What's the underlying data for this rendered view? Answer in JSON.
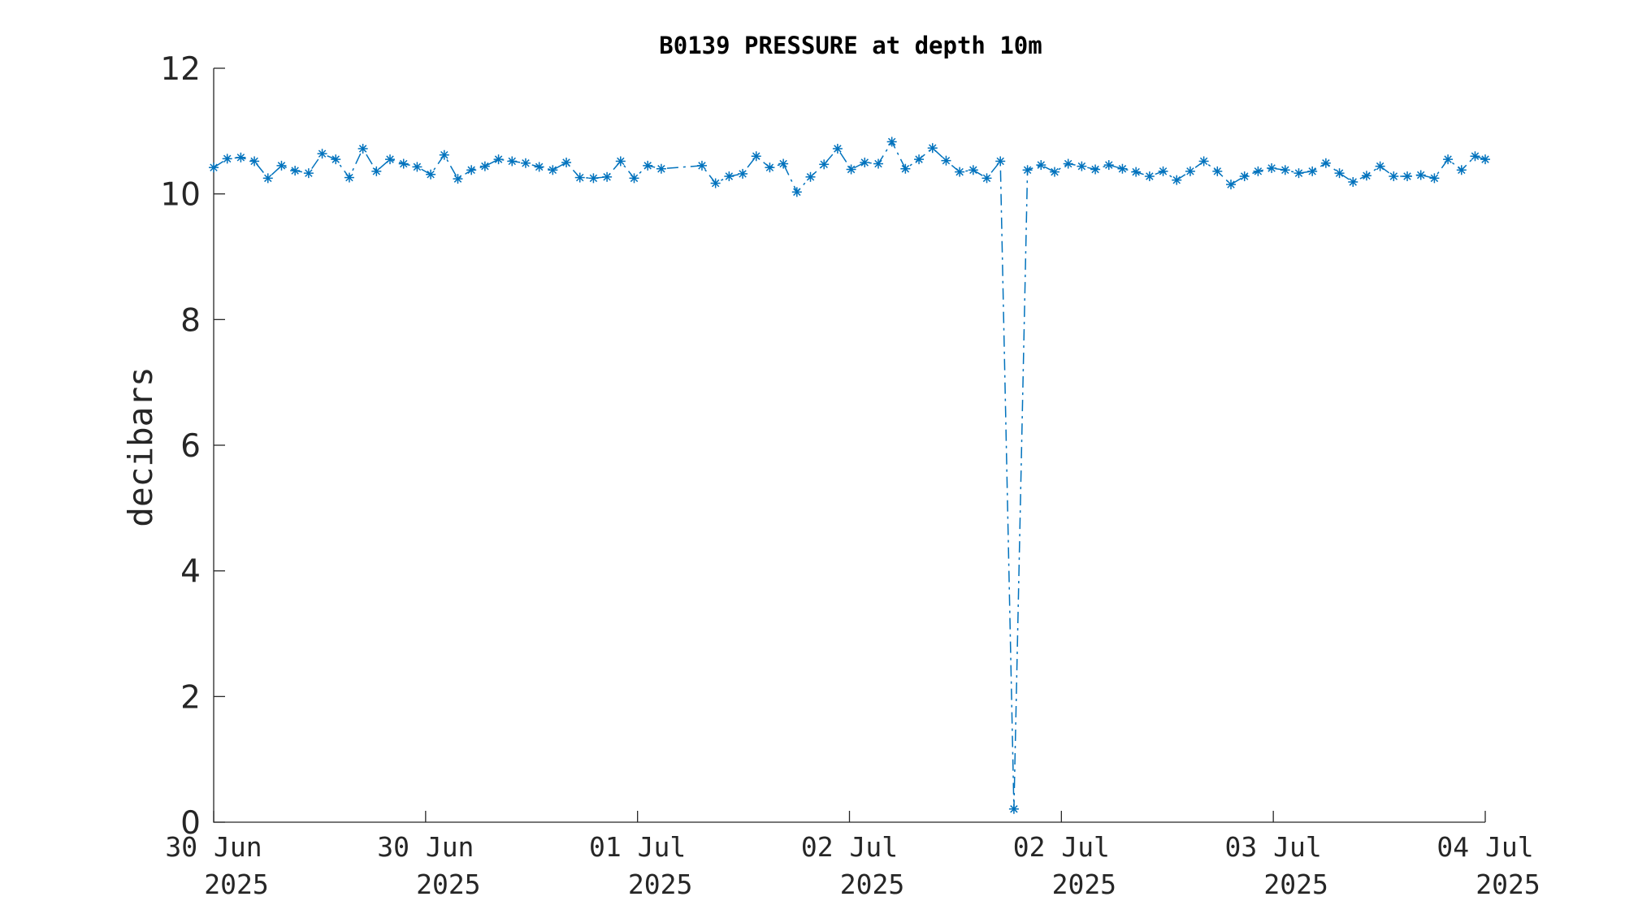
{
  "chart_data": {
    "type": "line",
    "title": "B0139 PRESSURE at depth 10m",
    "ylabel": "decibars",
    "xlabel": "",
    "ylim": [
      0,
      12
    ],
    "yticks": [
      0,
      2,
      4,
      6,
      8,
      10,
      12
    ],
    "xlim": [
      0,
      90
    ],
    "xticks": [
      {
        "value": 0,
        "line1": "30 Jun",
        "line2": "2025"
      },
      {
        "value": 15,
        "line1": "30 Jun",
        "line2": "2025"
      },
      {
        "value": 30,
        "line1": "01 Jul",
        "line2": "2025"
      },
      {
        "value": 45,
        "line1": "02 Jul",
        "line2": "2025"
      },
      {
        "value": 60,
        "line1": "02 Jul",
        "line2": "2025"
      },
      {
        "value": 75,
        "line1": "03 Jul",
        "line2": "2025"
      },
      {
        "value": 90,
        "line1": "04 Jul",
        "line2": "2025"
      }
    ],
    "grid": false,
    "marker": "asterisk",
    "line_style": "dash-dot",
    "color": "#0072BD",
    "series": [
      {
        "x": [
          0.0,
          0.96,
          1.92,
          2.88,
          3.84,
          4.8,
          5.76,
          6.72,
          7.68,
          8.64,
          9.6,
          10.56,
          11.52,
          12.48,
          13.44,
          14.4,
          15.36,
          16.32,
          17.28,
          18.24,
          19.2,
          20.16,
          21.12,
          22.08,
          23.04,
          24.0,
          24.96,
          25.92,
          26.88,
          27.84,
          28.8,
          29.76,
          30.72,
          31.68,
          34.56,
          35.52,
          36.48,
          37.44,
          38.4,
          39.36,
          40.32,
          41.28,
          42.24,
          43.2,
          44.16,
          45.12,
          46.08,
          47.04,
          48.0,
          48.96,
          49.92,
          50.88,
          51.84,
          52.8,
          53.76,
          54.72,
          55.68,
          56.64,
          57.6,
          58.56,
          59.52,
          60.48,
          61.44,
          62.4,
          63.36,
          64.32,
          65.28,
          66.24,
          67.2,
          68.16,
          69.12,
          70.08,
          71.04,
          72.0,
          72.96,
          73.92,
          74.88,
          75.84,
          76.8,
          77.76,
          78.72,
          79.68,
          80.64,
          81.6,
          82.56,
          83.52,
          84.48,
          85.44,
          86.4,
          87.36,
          88.32,
          89.28,
          90.0
        ],
        "y": [
          10.42,
          10.56,
          10.58,
          10.52,
          10.25,
          10.45,
          10.37,
          10.33,
          10.64,
          10.55,
          10.26,
          10.72,
          10.36,
          10.55,
          10.48,
          10.43,
          10.31,
          10.62,
          10.24,
          10.38,
          10.44,
          10.55,
          10.52,
          10.49,
          10.43,
          10.38,
          10.5,
          10.26,
          10.25,
          10.27,
          10.52,
          10.25,
          10.45,
          10.4,
          10.45,
          10.17,
          10.28,
          10.32,
          10.6,
          10.42,
          10.48,
          10.03,
          10.27,
          10.47,
          10.72,
          10.39,
          10.5,
          10.48,
          10.83,
          10.4,
          10.55,
          10.73,
          10.53,
          10.35,
          10.38,
          10.25,
          10.52,
          0.21,
          10.38,
          10.46,
          10.35,
          10.48,
          10.44,
          10.39,
          10.46,
          10.4,
          10.35,
          10.28,
          10.36,
          10.22,
          10.36,
          10.52,
          10.36,
          10.15,
          10.28,
          10.36,
          10.41,
          10.38,
          10.33,
          10.36,
          10.49,
          10.33,
          10.19,
          10.29,
          10.44,
          10.28,
          10.28,
          10.3,
          10.25,
          10.55,
          10.38,
          10.6,
          10.55
        ]
      }
    ]
  }
}
